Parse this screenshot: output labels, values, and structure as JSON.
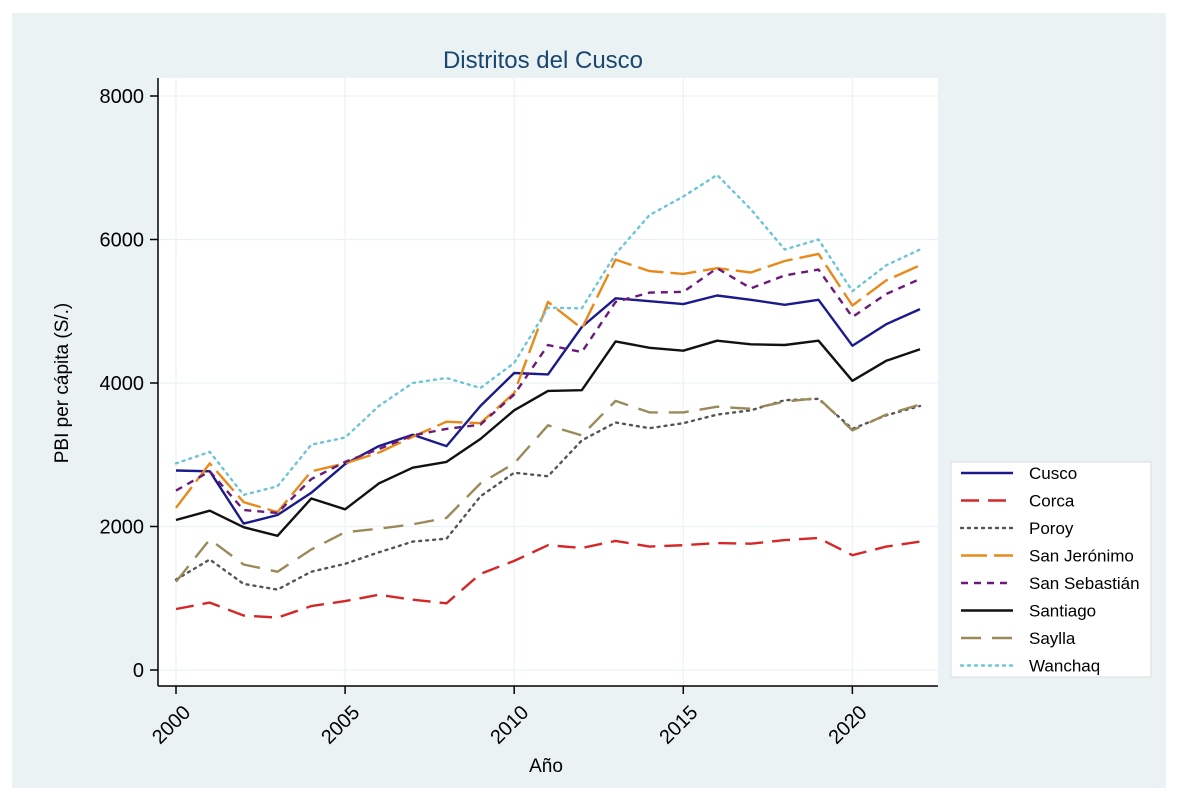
{
  "chart_data": {
    "type": "line",
    "title": "Distritos del Cusco",
    "xlabel": "Año",
    "ylabel": "PBI per cápita (S/.)",
    "xlim": [
      2000,
      2022
    ],
    "ylim": [
      0,
      8000
    ],
    "x_ticks": [
      2000,
      2005,
      2010,
      2015,
      2020
    ],
    "y_ticks": [
      0,
      2000,
      4000,
      6000,
      8000
    ],
    "grid": true,
    "legend_position": "right",
    "colors": {
      "outer_background": "#eaf2f3",
      "plot_background": "#ffffff",
      "grid": "#eaf2f3",
      "title": "#1a476f"
    },
    "x": [
      2000,
      2001,
      2002,
      2003,
      2004,
      2005,
      2006,
      2007,
      2008,
      2009,
      2010,
      2011,
      2012,
      2013,
      2014,
      2015,
      2016,
      2017,
      2018,
      2019,
      2020,
      2021,
      2022
    ],
    "series": [
      {
        "name": "Cusco",
        "color": "#1a1a8c",
        "dash": "solid",
        "values": [
          2780,
          2770,
          2040,
          2160,
          2470,
          2870,
          3120,
          3280,
          3120,
          3680,
          4140,
          4120,
          4780,
          5180,
          5140,
          5100,
          5220,
          5160,
          5090,
          5160,
          4520,
          4820,
          5030
        ]
      },
      {
        "name": "Corca",
        "color": "#d62728",
        "dash": "long",
        "values": [
          850,
          940,
          760,
          730,
          890,
          960,
          1050,
          980,
          930,
          1340,
          1520,
          1740,
          1700,
          1800,
          1720,
          1740,
          1770,
          1760,
          1810,
          1840,
          1600,
          1720,
          1790
        ]
      },
      {
        "name": "Poroy",
        "color": "#555555",
        "dash": "dot",
        "values": [
          1260,
          1540,
          1200,
          1120,
          1370,
          1480,
          1640,
          1790,
          1830,
          2420,
          2750,
          2700,
          3200,
          3450,
          3370,
          3440,
          3560,
          3620,
          3760,
          3780,
          3360,
          3550,
          3680
        ]
      },
      {
        "name": "San Jerónimo",
        "color": "#e8891a",
        "dash": "longdash",
        "values": [
          2260,
          2880,
          2340,
          2200,
          2770,
          2880,
          3030,
          3250,
          3460,
          3440,
          3860,
          5130,
          4760,
          5720,
          5560,
          5520,
          5600,
          5540,
          5700,
          5800,
          5080,
          5430,
          5640
        ]
      },
      {
        "name": "San Sebastián",
        "color": "#6a1a7a",
        "dash": "shortdash",
        "values": [
          2500,
          2770,
          2230,
          2190,
          2660,
          2900,
          3080,
          3270,
          3360,
          3420,
          3840,
          4530,
          4430,
          5130,
          5260,
          5270,
          5600,
          5320,
          5500,
          5580,
          4920,
          5240,
          5450
        ]
      },
      {
        "name": "Santiago",
        "color": "#111111",
        "dash": "solid",
        "values": [
          2090,
          2220,
          1990,
          1870,
          2390,
          2240,
          2600,
          2820,
          2900,
          3220,
          3620,
          3890,
          3900,
          4580,
          4490,
          4450,
          4590,
          4540,
          4530,
          4590,
          4030,
          4310,
          4470
        ]
      },
      {
        "name": "Saylla",
        "color": "#9a8a5a",
        "dash": "longdash2",
        "values": [
          1230,
          1820,
          1470,
          1370,
          1680,
          1920,
          1970,
          2030,
          2120,
          2600,
          2880,
          3410,
          3270,
          3750,
          3590,
          3590,
          3670,
          3640,
          3740,
          3790,
          3340,
          3560,
          3700
        ]
      },
      {
        "name": "Wanchaq",
        "color": "#6cc5d6",
        "dash": "dot",
        "values": [
          2880,
          3040,
          2440,
          2560,
          3140,
          3240,
          3680,
          4000,
          4070,
          3930,
          4280,
          5050,
          5040,
          5800,
          6340,
          6600,
          6900,
          6420,
          5860,
          6000,
          5280,
          5640,
          5860
        ]
      }
    ]
  }
}
